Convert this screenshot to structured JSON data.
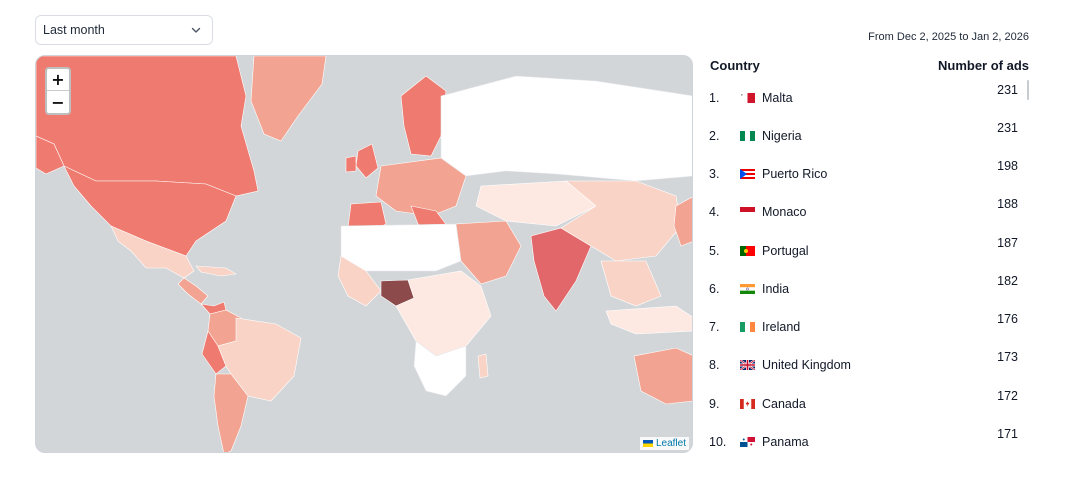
{
  "filter": {
    "period_label": "Last month"
  },
  "date_range": "From Dec 2, 2025 to Jan 2, 2026",
  "table": {
    "headers": {
      "country": "Country",
      "ads": "Number of ads"
    },
    "rows": [
      {
        "rank": "1.",
        "country": "Malta",
        "ads": "231",
        "flag": "malta-flag"
      },
      {
        "rank": "2.",
        "country": "Nigeria",
        "ads": "231",
        "flag": "nigeria-flag"
      },
      {
        "rank": "3.",
        "country": "Puerto Rico",
        "ads": "198",
        "flag": "puerto-rico-flag"
      },
      {
        "rank": "4.",
        "country": "Monaco",
        "ads": "188",
        "flag": "monaco-flag"
      },
      {
        "rank": "5.",
        "country": "Portugal",
        "ads": "187",
        "flag": "portugal-flag"
      },
      {
        "rank": "6.",
        "country": "India",
        "ads": "182",
        "flag": "india-flag"
      },
      {
        "rank": "7.",
        "country": "Ireland",
        "ads": "176",
        "flag": "ireland-flag"
      },
      {
        "rank": "8.",
        "country": "United Kingdom",
        "ads": "173",
        "flag": "uk-flag"
      },
      {
        "rank": "9.",
        "country": "Canada",
        "ads": "172",
        "flag": "canada-flag"
      },
      {
        "rank": "10.",
        "country": "Panama",
        "ads": "171",
        "flag": "panama-flag"
      }
    ]
  },
  "map": {
    "zoom_in": "+",
    "zoom_out": "−",
    "attribution": "Leaflet",
    "colors": {
      "ocean": "#d3d6d9",
      "high": "#ef7a6f",
      "mid": "#f3a391",
      "low": "#f8d3c6",
      "lowest": "#fde9e2",
      "none": "#ffffff",
      "top": "#8c4a4a"
    }
  }
}
